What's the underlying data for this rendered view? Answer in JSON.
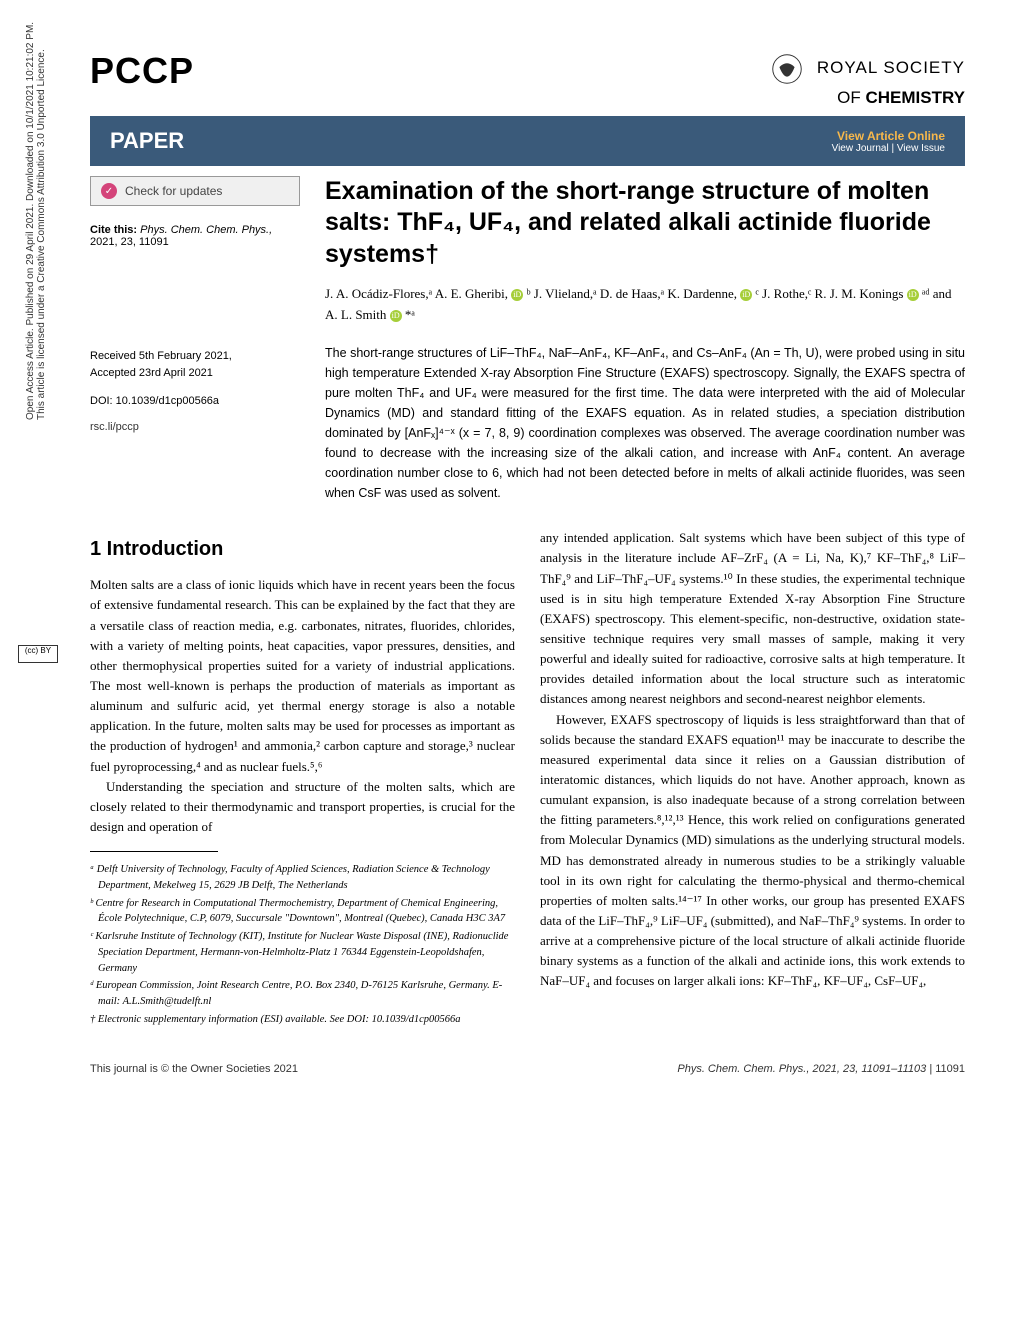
{
  "journal": "PCCP",
  "publisher": {
    "line1": "ROYAL SOCIETY",
    "line2_of": "OF",
    "line2_chem": "CHEMISTRY"
  },
  "paper_bar": {
    "label": "PAPER",
    "view_article": "View Article Online",
    "view_journal": "View Journal | View Issue"
  },
  "check_updates": "Check for updates",
  "cite": {
    "label": "Cite this:",
    "journal_ref": "Phys. Chem. Chem. Phys.,",
    "year_vol_page": "2021, 23, 11091"
  },
  "dates": {
    "received": "Received 5th February 2021,",
    "accepted": "Accepted 23rd April 2021"
  },
  "doi": "DOI: 10.1039/d1cp00566a",
  "rsc_link": "rsc.li/pccp",
  "title": "Examination of the short-range structure of molten salts: ThF₄, UF₄, and related alkali actinide fluoride systems†",
  "authors_html": "J. A. Ocádiz-Flores,ᵃ A. E. Gheribi, <span class='orcid'>iD</span> ᵇ J. Vlieland,ᵃ D. de Haas,ᵃ K. Dardenne, <span class='orcid'>iD</span> ᶜ J. Rothe,ᶜ R. J. M. Konings <span class='orcid'>iD</span> ᵃᵈ and A. L. Smith <span class='orcid'>iD</span> *ᵃ",
  "abstract": "The short-range structures of LiF–ThF₄, NaF–AnF₄, KF–AnF₄, and Cs–AnF₄ (An = Th, U), were probed using in situ high temperature Extended X-ray Absorption Fine Structure (EXAFS) spectroscopy. Signally, the EXAFS spectra of pure molten ThF₄ and UF₄ were measured for the first time. The data were interpreted with the aid of Molecular Dynamics (MD) and standard fitting of the EXAFS equation. As in related studies, a speciation distribution dominated by [AnFₓ]⁴⁻ˣ (x = 7, 8, 9) coordination complexes was observed. The average coordination number was found to decrease with the increasing size of the alkali cation, and increase with AnF₄ content. An average coordination number close to 6, which had not been detected before in melts of alkali actinide fluorides, was seen when CsF was used as solvent.",
  "intro_heading": "1 Introduction",
  "intro_p1": "Molten salts are a class of ionic liquids which have in recent years been the focus of extensive fundamental research. This can be explained by the fact that they are a versatile class of reaction media, e.g. carbonates, nitrates, fluorides, chlorides, with a variety of melting points, heat capacities, vapor pressures, densities, and other thermophysical properties suited for a variety of industrial applications. The most well-known is perhaps the production of materials as important as aluminum and sulfuric acid, yet thermal energy storage is also a notable application. In the future, molten salts may be used for processes as important as the production of hydrogen¹ and ammonia,² carbon capture and storage,³ nuclear fuel pyroprocessing,⁴ and as nuclear fuels.⁵,⁶",
  "intro_p2": "Understanding the speciation and structure of the molten salts, which are closely related to their thermodynamic and transport properties, is crucial for the design and operation of",
  "col2_p1": "any intended application. Salt systems which have been subject of this type of analysis in the literature include AF–ZrF₄ (A = Li, Na, K),⁷ KF–ThF₄,⁸ LiF–ThF₄⁹ and LiF–ThF₄–UF₄ systems.¹⁰ In these studies, the experimental technique used is in situ high temperature Extended X-ray Absorption Fine Structure (EXAFS) spectroscopy. This element-specific, non-destructive, oxidation state-sensitive technique requires very small masses of sample, making it very powerful and ideally suited for radioactive, corrosive salts at high temperature. It provides detailed information about the local structure such as interatomic distances among nearest neighbors and second-nearest neighbor elements.",
  "col2_p2": "However, EXAFS spectroscopy of liquids is less straightforward than that of solids because the standard EXAFS equation¹¹ may be inaccurate to describe the measured experimental data since it relies on a Gaussian distribution of interatomic distances, which liquids do not have. Another approach, known as cumulant expansion, is also inadequate because of a strong correlation between the fitting parameters.⁸,¹²,¹³ Hence, this work relied on configurations generated from Molecular Dynamics (MD) simulations as the underlying structural models. MD has demonstrated already in numerous studies to be a strikingly valuable tool in its own right for calculating the thermo-physical and thermo-chemical properties of molten salts.¹⁴⁻¹⁷ In other works, our group has presented EXAFS data of the LiF–ThF₄,⁹ LiF–UF₄ (submitted), and NaF–ThF₄⁹ systems. In order to arrive at a comprehensive picture of the local structure of alkali actinide fluoride binary systems as a function of the alkali and actinide ions, this work extends to NaF–UF₄ and focuses on larger alkali ions: KF–ThF₄, KF–UF₄, CsF–UF₄,",
  "affiliations": {
    "a": "ᵃ Delft University of Technology, Faculty of Applied Sciences, Radiation Science & Technology Department, Mekelweg 15, 2629 JB Delft, The Netherlands",
    "b": "ᵇ Centre for Research in Computational Thermochemistry, Department of Chemical Engineering, École Polytechnique, C.P, 6079, Succursale \"Downtown\", Montreal (Quebec), Canada H3C 3A7",
    "c": "ᶜ Karlsruhe Institute of Technology (KIT), Institute for Nuclear Waste Disposal (INE), Radionuclide Speciation Department, Hermann-von-Helmholtz-Platz 1 76344 Eggenstein-Leopoldshafen, Germany",
    "d": "ᵈ European Commission, Joint Research Centre, P.O. Box 2340, D-76125 Karlsruhe, Germany. E-mail: A.L.Smith@tudelft.nl",
    "esi": "† Electronic supplementary information (ESI) available. See DOI: 10.1039/d1cp00566a"
  },
  "footer": {
    "left": "This journal is © the Owner Societies 2021",
    "right_journal": "Phys. Chem. Chem. Phys., 2021, 23, 11091–11103 | ",
    "right_page": "11091"
  },
  "sidebar": {
    "line1": "Open Access Article. Published on 29 April 2021. Downloaded on 10/1/2021 10:21:02 PM.",
    "line2": "This article is licensed under a Creative Commons Attribution 3.0 Unported Licence."
  },
  "cc_text": "(cc) BY",
  "colors": {
    "bar_bg": "#3a5a7a",
    "vao": "#f7b84b",
    "orcid": "#a6ce39",
    "check_icon": "#d4447a"
  }
}
